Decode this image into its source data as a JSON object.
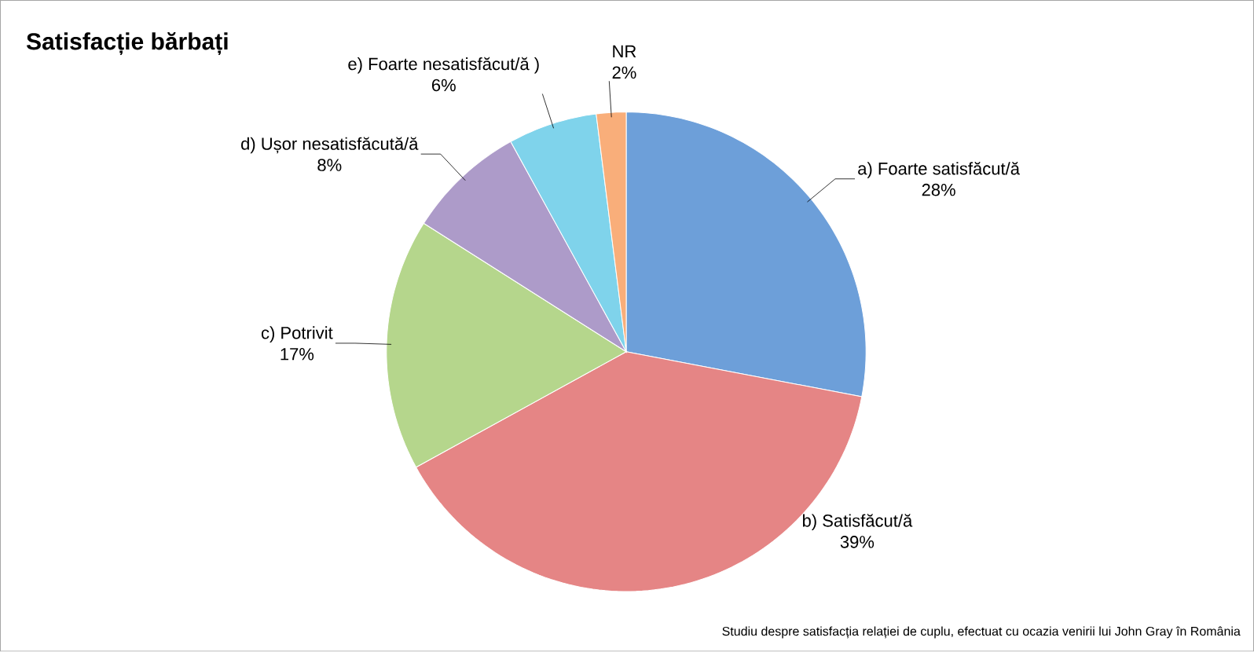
{
  "chart_data": {
    "type": "pie",
    "title": "Satisfacție bărbați",
    "categories": [
      "a) Foarte satisfăcut/ă",
      "b) Satisfăcut/ă",
      "c) Potrivit",
      "d) Ușor nesatisfăcută/ă",
      "e) Foarte nesatisfăcut/ă )",
      "NR"
    ],
    "values": [
      28,
      39,
      17,
      8,
      6,
      2
    ],
    "colors": [
      "#6d9fd9",
      "#e58585",
      "#b5d68c",
      "#ad9bc9",
      "#7fd3eb",
      "#f9ae7a"
    ],
    "value_labels": [
      "28%",
      "39%",
      "17%",
      "8%",
      "6%",
      "2%"
    ],
    "annotations": [
      "Studiu despre satisfacția relației de cuplu, efectuat cu ocazia venirii lui John Gray în România"
    ]
  }
}
